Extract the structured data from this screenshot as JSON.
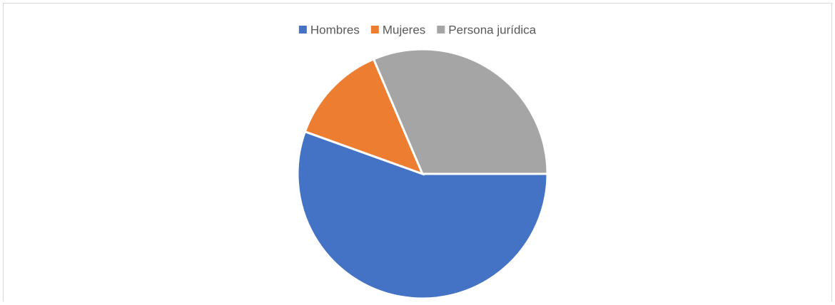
{
  "chart_data": {
    "type": "pie",
    "categories": [
      "Hombres",
      "Mujeres",
      "Persona jurídica"
    ],
    "values": [
      55.5,
      13.1,
      31.4
    ],
    "colors": [
      "#4472c4",
      "#ed7d31",
      "#a5a5a5"
    ],
    "start_angle": 90,
    "legend": "top"
  }
}
